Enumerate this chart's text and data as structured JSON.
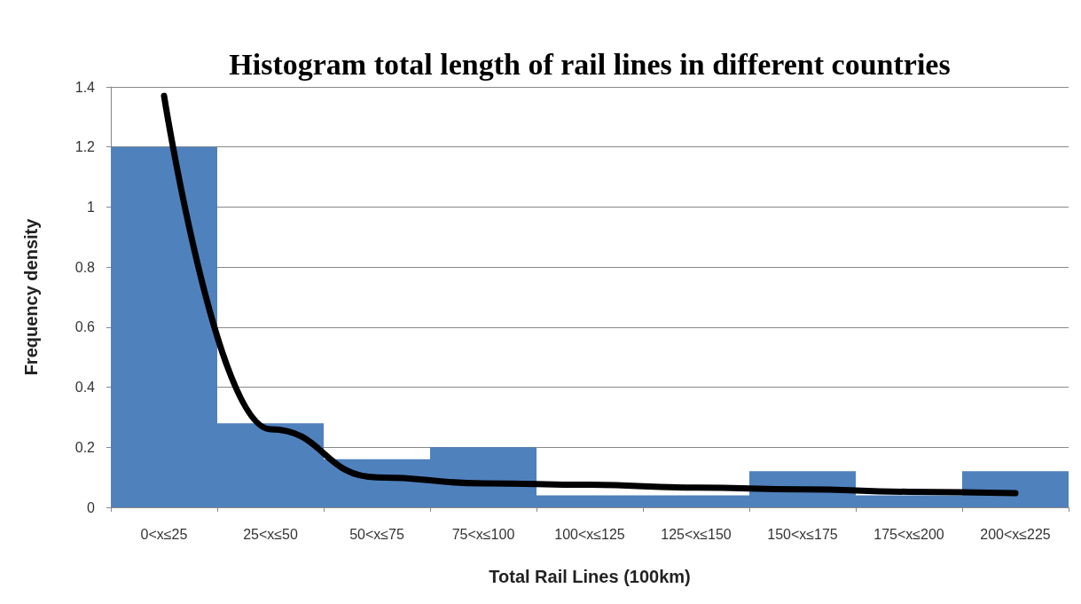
{
  "chart_data": {
    "type": "bar",
    "title": "Histogram total length of rail lines in different countries",
    "xlabel": "Total Rail Lines (100km)",
    "ylabel": "Frequency density",
    "categories": [
      "0<x≤25",
      "25<x≤50",
      "50<x≤75",
      "75<x≤100",
      "100<x≤125",
      "125<x≤150",
      "150<x≤175",
      "175<x≤200",
      "200<x≤225"
    ],
    "series": [
      {
        "color": "#4f81bd",
        "values": [
          1.2,
          0.28,
          0.16,
          0.2,
          0.04,
          0.04,
          0.12,
          0.04,
          0.12
        ]
      },
      {
        "type": "line",
        "color": "#000000",
        "values": [
          1.37,
          0.26,
          0.1,
          0.08,
          0.075,
          0.066,
          0.06,
          0.052,
          0.047
        ]
      }
    ],
    "ylim": [
      0,
      1.4
    ],
    "yticks": [
      0,
      0.2,
      0.4,
      0.6,
      0.8,
      1,
      1.2,
      1.4
    ],
    "grid": "y",
    "marker": "none"
  }
}
